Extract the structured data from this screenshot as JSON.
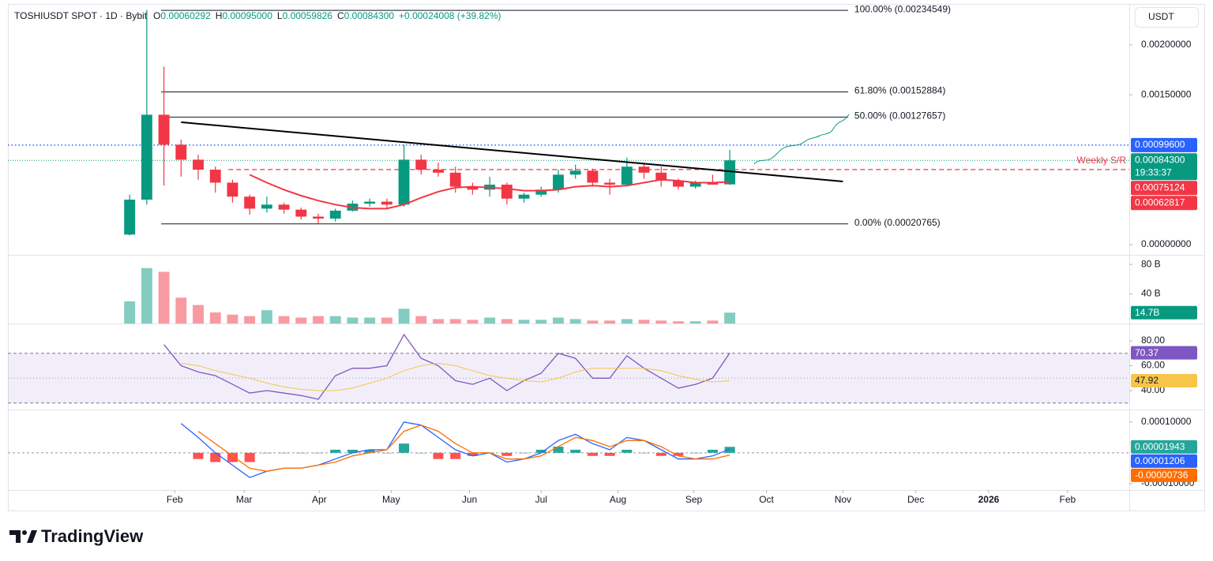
{
  "header": {
    "symbol": "TOSHIUSDT SPOT · 1D · Bybit",
    "ohlc": [
      {
        "key": "O",
        "value": "0.00060292"
      },
      {
        "key": "H",
        "value": "0.00095000"
      },
      {
        "key": "L",
        "value": "0.00059826"
      },
      {
        "key": "C",
        "value": "0.00084300"
      }
    ],
    "change": "+0.00024008 (+39.82%)"
  },
  "currency": "USDT",
  "branding": "TradingView",
  "chart_data": [
    {
      "type": "candlestick",
      "categories": [
        null,
        null,
        null,
        null,
        null,
        null,
        null,
        null,
        null,
        null,
        null,
        null,
        null,
        null,
        null,
        null,
        null,
        null,
        null,
        null,
        null,
        null,
        null,
        null,
        null,
        null,
        null,
        null,
        null,
        null,
        null,
        null,
        null,
        null,
        null,
        null
      ],
      "open": [
        0.0001,
        0.00045,
        0.0013,
        0.001,
        0.00085,
        0.00075,
        0.00062,
        0.00048,
        0.00036,
        0.0004,
        0.00035,
        0.00028,
        0.00026,
        0.00034,
        0.00041,
        0.00043,
        0.0004,
        0.00085,
        0.00075,
        0.00072,
        0.00058,
        0.00055,
        0.0006,
        0.00046,
        0.0005,
        0.00055,
        0.0007,
        0.00074,
        0.00062,
        0.0006,
        0.00078,
        0.00072,
        0.00064,
        0.00058,
        0.00062,
        0.00060292
      ],
      "high": [
        0.0005,
        0.00235,
        0.00178,
        0.00105,
        0.0009,
        0.00078,
        0.00065,
        0.0005,
        0.00048,
        0.00042,
        0.00037,
        0.00031,
        0.00036,
        0.00044,
        0.00046,
        0.00046,
        0.001,
        0.0009,
        0.00082,
        0.00078,
        0.00062,
        0.00068,
        0.00062,
        0.00052,
        0.00058,
        0.00075,
        0.0008,
        0.00076,
        0.00066,
        0.00087,
        0.00082,
        0.00078,
        0.00066,
        0.00064,
        0.0007,
        0.00095
      ],
      "low": [
        9e-05,
        0.0004,
        0.00059,
        0.00068,
        0.00065,
        0.00052,
        0.00042,
        0.0003,
        0.00032,
        0.00031,
        0.00025,
        0.000208,
        0.00023,
        0.00033,
        0.00038,
        0.00037,
        0.00038,
        0.0007,
        0.00068,
        0.00052,
        0.0005,
        0.00048,
        0.0004,
        0.00042,
        0.00048,
        0.00052,
        0.00066,
        0.00058,
        0.0005,
        0.00058,
        0.00066,
        0.00058,
        0.00055,
        0.00056,
        0.0006,
        0.000598
      ],
      "close": [
        0.00045,
        0.0013,
        0.001,
        0.00085,
        0.00075,
        0.00062,
        0.00048,
        0.00036,
        0.0004,
        0.00035,
        0.00028,
        0.00026,
        0.00034,
        0.00041,
        0.00043,
        0.0004,
        0.00085,
        0.00075,
        0.00072,
        0.00058,
        0.00055,
        0.0006,
        0.00046,
        0.0005,
        0.00055,
        0.0007,
        0.00074,
        0.00062,
        0.0006,
        0.00078,
        0.00072,
        0.00064,
        0.00058,
        0.00062,
        0.0006,
        0.000843
      ],
      "close_label": "0.00084300",
      "countdown": "19:33:37",
      "up_color": "#089981",
      "down_color": "#f23645",
      "ma_values": [
        null,
        null,
        null,
        null,
        null,
        null,
        null,
        0.0007,
        0.00062,
        0.00055,
        0.00049,
        0.00044,
        0.0004,
        0.00037,
        0.00036,
        0.00036,
        0.0004,
        0.00047,
        0.00053,
        0.00057,
        0.00058,
        0.00057,
        0.00056,
        0.00054,
        0.00054,
        0.00055,
        0.00058,
        0.00059,
        0.00058,
        0.00059,
        0.00062,
        0.00065,
        0.00064,
        0.00062,
        0.00062,
        0.00062817
      ],
      "ma_label": "0.00062817",
      "ma_color": "#f23645",
      "xlim": [
        -7.1,
        58.3
      ],
      "xticks": [
        {
          "value": 2.63,
          "label": "Feb"
        },
        {
          "value": 6.68,
          "label": "Mar"
        },
        {
          "value": 11.06,
          "label": "Apr"
        },
        {
          "value": 15.25,
          "label": "May"
        },
        {
          "value": 19.82,
          "label": "Jun"
        },
        {
          "value": 24.0,
          "label": "Jul"
        },
        {
          "value": 28.48,
          "label": "Aug"
        },
        {
          "value": 32.9,
          "label": "Sep"
        },
        {
          "value": 37.14,
          "label": "Oct"
        },
        {
          "value": 41.6,
          "label": "Nov"
        },
        {
          "value": 45.85,
          "label": "Dec"
        },
        {
          "value": 50.1,
          "label": "2026",
          "bold": true
        },
        {
          "value": 54.7,
          "label": "Feb"
        }
      ],
      "ylim": [
        -9.5e-05,
        0.00237
      ],
      "yticks": [
        {
          "value": 0,
          "label": "0.00000000"
        },
        {
          "value": 0.0015,
          "label": "0.00150000"
        },
        {
          "value": 0.002,
          "label": "0.00200000"
        }
      ],
      "grid": false,
      "trendline": {
        "x": [
          3.0,
          41.6
        ],
        "y": [
          0.001225,
          0.000632
        ],
        "color": "#000000"
      },
      "fibonacci": {
        "x": [
          1.84,
          41.9
        ],
        "levels": [
          {
            "value": 0.00234549,
            "label": "100.00% (0.00234549)"
          },
          {
            "value": 0.00152884,
            "label": "61.80% (0.00152884)"
          },
          {
            "value": 0.00127657,
            "label": "50.00% (0.00127657)"
          },
          {
            "value": 0.00020765,
            "label": "0.00% (0.00020765)"
          }
        ]
      },
      "price_lines": [
        {
          "value": 0.000996,
          "label": "0.00099600",
          "color": "#2962ff",
          "style": "dotted"
        },
        {
          "value": 0.00075124,
          "label": "0.00075124",
          "color": "#f23645",
          "style": "dashed",
          "name": "Weekly S/R",
          "from": 5.76
        }
      ]
    },
    {
      "type": "bar",
      "values": [
        30,
        75,
        70,
        35,
        25,
        15,
        12,
        10,
        18,
        10,
        8,
        10,
        10,
        8,
        8,
        8,
        20,
        10,
        6,
        6,
        5,
        8,
        6,
        5,
        5,
        8,
        6,
        4,
        4,
        6,
        5,
        4,
        3,
        3,
        4,
        14.7
      ],
      "value_labels": [
        null,
        null,
        null,
        null,
        null,
        null,
        null,
        null,
        null,
        null,
        null,
        null,
        null,
        null,
        null,
        null,
        null,
        null,
        null,
        null,
        null,
        null,
        null,
        null,
        null,
        null,
        null,
        null,
        null,
        null,
        null,
        null,
        null,
        null,
        null,
        "14.7B"
      ],
      "ylim": [
        0,
        90.8
      ],
      "yticks": [
        {
          "value": 40,
          "label": "40 B"
        },
        {
          "value": 80,
          "label": "80 B"
        }
      ]
    },
    {
      "type": "line",
      "series": [
        {
          "color": "#7e57c2",
          "values": [
            null,
            null,
            77,
            60,
            55,
            52,
            45,
            38,
            40,
            38,
            36,
            33,
            52,
            58,
            58,
            60,
            85,
            66,
            60,
            48,
            45,
            50,
            40,
            48,
            54,
            70,
            66,
            50,
            50,
            68,
            58,
            50,
            42,
            45,
            50,
            70.37
          ]
        },
        {
          "color": "#f7c548",
          "values": [
            null,
            null,
            null,
            62,
            60,
            56,
            53,
            50,
            46,
            43,
            41,
            40,
            40,
            42,
            46,
            50,
            56,
            60,
            62,
            60,
            56,
            52,
            50,
            48,
            47,
            50,
            55,
            58,
            58,
            58,
            58,
            56,
            52,
            49,
            47,
            47.92
          ]
        }
      ],
      "band": [
        30,
        70
      ],
      "midline": 50,
      "ylim": [
        25.4,
        92.7
      ],
      "yticks": [
        {
          "value": 40,
          "label": "40.00"
        },
        {
          "value": 60,
          "label": "60.00"
        },
        {
          "value": 80,
          "label": "80.00"
        }
      ]
    },
    {
      "type": "macd",
      "histogram": [
        null,
        null,
        null,
        null,
        -2e-05,
        -3e-05,
        -3e-05,
        -3e-05,
        0,
        0,
        0,
        0,
        1e-05,
        1e-05,
        1e-05,
        0,
        3e-05,
        0,
        -2e-05,
        -2e-05,
        -1e-05,
        0,
        -1e-05,
        0,
        1e-05,
        2e-05,
        1e-05,
        -1e-05,
        -1e-05,
        1e-05,
        0,
        -1e-05,
        -1e-05,
        0,
        1e-05,
        1.943e-05
      ],
      "macd": [
        null,
        null,
        null,
        9.5e-05,
        5e-05,
        0,
        -4e-05,
        -8e-05,
        -6e-05,
        -5e-05,
        -5e-05,
        -4e-05,
        -2e-05,
        0,
        1e-05,
        1e-05,
        0.0001,
        9e-05,
        5e-05,
        1e-05,
        -1e-05,
        0,
        -3e-05,
        -2e-05,
        0,
        4e-05,
        6e-05,
        3e-05,
        1e-05,
        5e-05,
        4e-05,
        1e-05,
        -2e-05,
        -2e-05,
        -1e-05,
        1.206e-05
      ],
      "signal": [
        null,
        null,
        null,
        null,
        7e-05,
        3e-05,
        -1e-05,
        -5e-05,
        -6e-05,
        -5e-05,
        -5e-05,
        -4e-05,
        -3e-05,
        -1e-05,
        0,
        1e-05,
        7e-05,
        9e-05,
        7e-05,
        3e-05,
        0,
        0,
        -2e-05,
        -2e-05,
        -1e-05,
        2e-05,
        5e-05,
        4e-05,
        2e-05,
        4e-05,
        4e-05,
        2e-05,
        -1e-05,
        -2e-05,
        -2e-05,
        -7.36e-06
      ],
      "up_color": "#26a69a",
      "down_color": "#ff5252",
      "macd_color": "#2962ff",
      "signal_color": "#ff6d00",
      "ylim": [
        -0.000118,
        0.000138
      ],
      "yticks": [
        {
          "value": -0.0001,
          "label": "-0.00010000"
        },
        {
          "value": 0.0001,
          "label": "0.00010000"
        }
      ]
    }
  ]
}
